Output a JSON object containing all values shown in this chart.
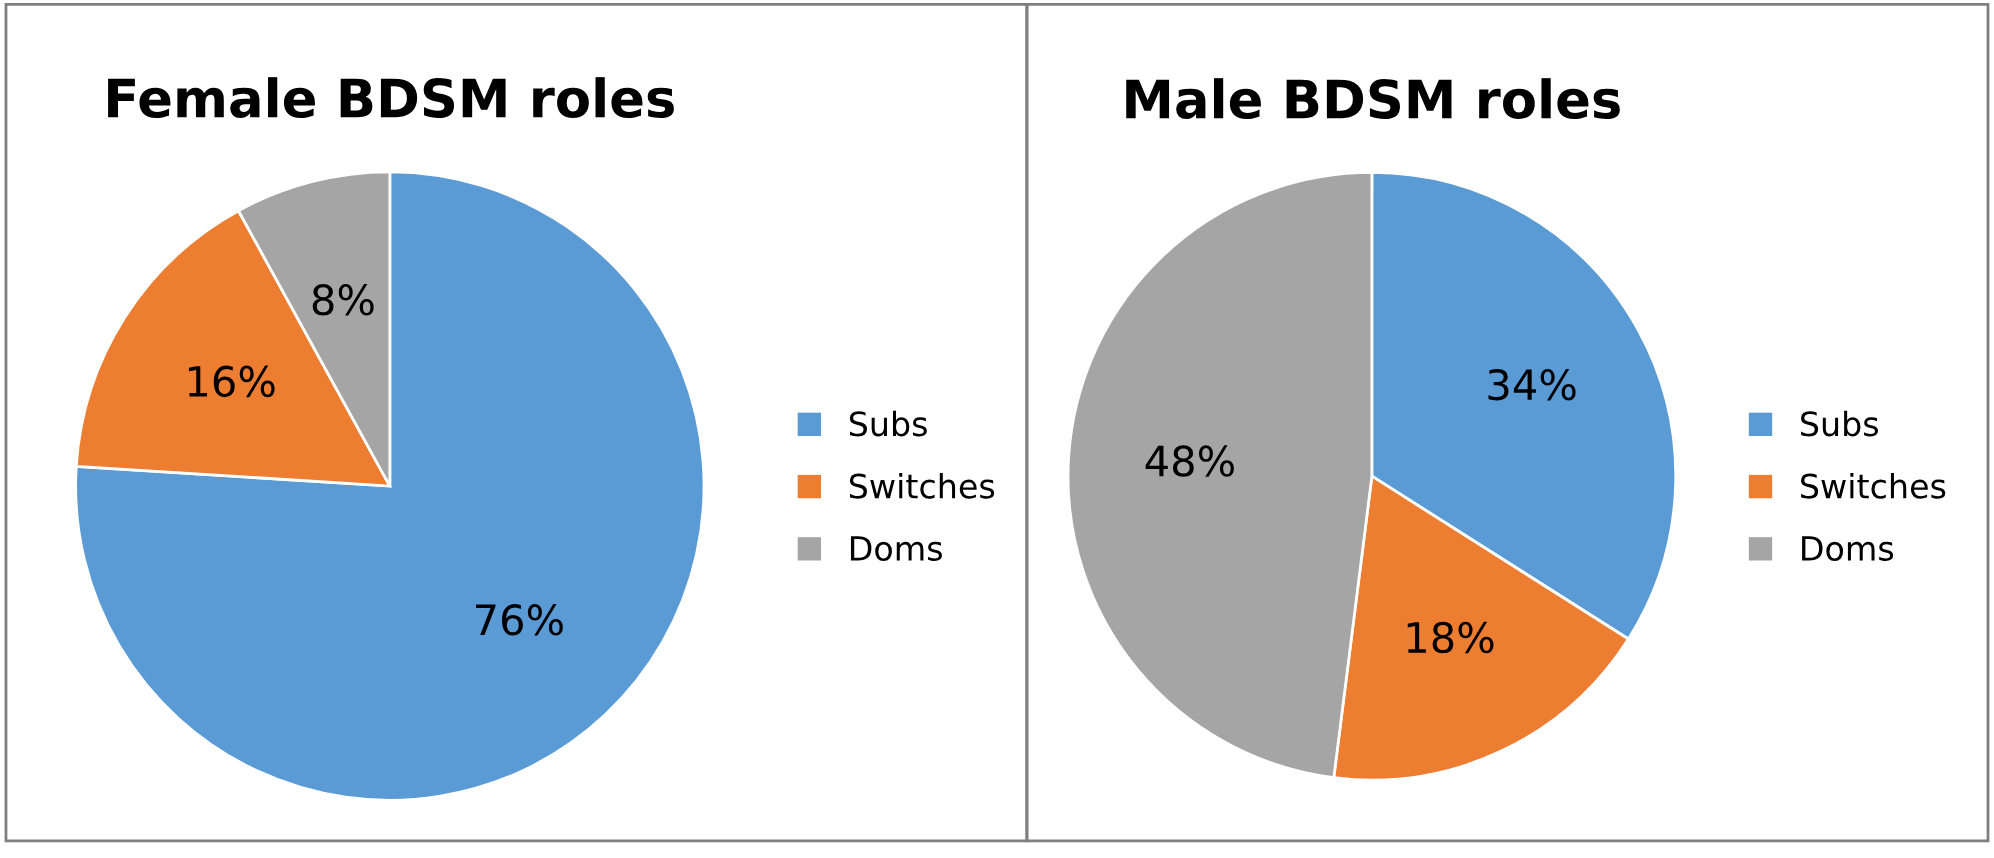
{
  "chart_data": [
    {
      "type": "pie",
      "title": "Female BDSM roles",
      "categories": [
        "Subs",
        "Switches",
        "Doms"
      ],
      "values": [
        76,
        16,
        8
      ],
      "colors": [
        "#5b9bd5",
        "#ed7d31",
        "#a5a5a5"
      ],
      "value_labels": [
        "76%",
        "16%",
        "8%"
      ],
      "legend": "right"
    },
    {
      "type": "pie",
      "title": "Male BDSM roles",
      "categories": [
        "Subs",
        "Switches",
        "Doms"
      ],
      "values": [
        34,
        18,
        48
      ],
      "colors": [
        "#5b9bd5",
        "#ed7d31",
        "#a5a5a5"
      ],
      "value_labels": [
        "34%",
        "18%",
        "48%"
      ],
      "legend": "right"
    }
  ]
}
